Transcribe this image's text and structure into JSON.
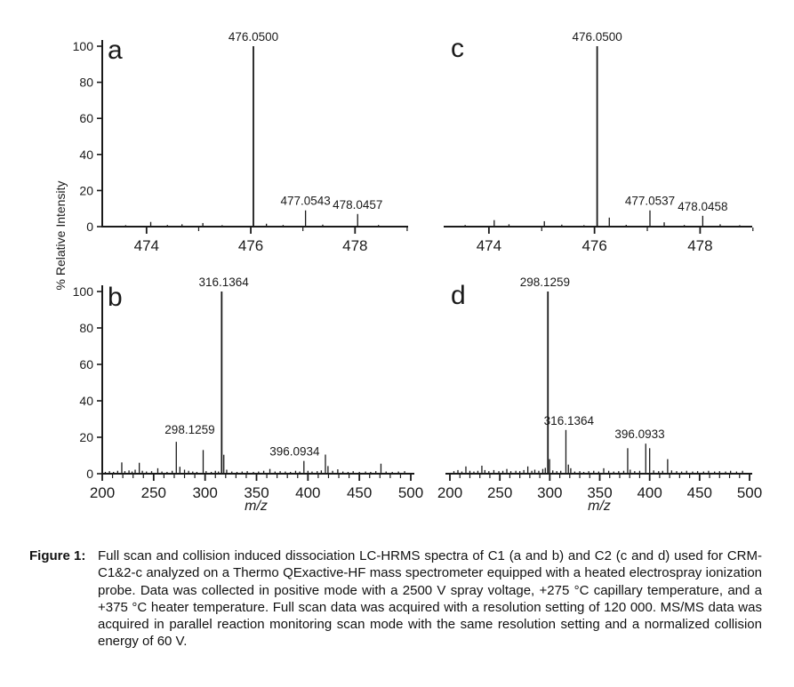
{
  "figure": {
    "ylabel": "% Relative Intensity"
  },
  "caption": {
    "label": "Figure 1:",
    "text": "Full scan and collision induced dissociation LC-HRMS spectra of C1 (a and b) and C2 (c and d) used for CRM-C1&2-c analyzed on a Thermo QExactive-HF mass spectrometer equipped with a heated electrospray ionization probe. Data was collected in positive mode with a 2500 V spray voltage, +275 °C capillary temperature, and a +375 °C heater temperature. Full scan data was acquired with a resolution setting of 120 000. MS/MS data was acquired in parallel reaction monitoring scan mode with the same resolution setting and a normalized collision energy of 60 V."
  },
  "chart_data": [
    {
      "id": "a",
      "type": "bar",
      "style": "mass-spectrum-sticks",
      "letter": "a",
      "xlabel": "",
      "ylabel_shared": "% Relative Intensity",
      "xlim": [
        473.15,
        478.95
      ],
      "ylim": [
        0,
        100
      ],
      "y_axis": true,
      "xticks": {
        "start": 474,
        "end": 479,
        "step": 1,
        "labeled": [
          474,
          476,
          478
        ]
      },
      "yticks": [
        0,
        20,
        40,
        60,
        80,
        100
      ],
      "peaks": [
        {
          "mz": 473.6,
          "i": 0.8
        },
        {
          "mz": 474.08,
          "i": 2.6
        },
        {
          "mz": 474.4,
          "i": 0.9
        },
        {
          "mz": 474.68,
          "i": 1.3
        },
        {
          "mz": 475.08,
          "i": 2.0
        },
        {
          "mz": 475.45,
          "i": 0.8
        },
        {
          "mz": 476.05,
          "i": 100,
          "label": "476.0500"
        },
        {
          "mz": 476.3,
          "i": 1.6
        },
        {
          "mz": 476.62,
          "i": 0.9
        },
        {
          "mz": 477.05,
          "i": 9,
          "label": "477.0543"
        },
        {
          "mz": 477.38,
          "i": 1.1
        },
        {
          "mz": 478.05,
          "i": 7,
          "label": "478.0457"
        },
        {
          "mz": 478.45,
          "i": 0.9
        }
      ]
    },
    {
      "id": "c",
      "type": "bar",
      "style": "mass-spectrum-sticks",
      "letter": "c",
      "xlabel": "",
      "xlim": [
        473.16,
        478.97
      ],
      "ylim": [
        0,
        100
      ],
      "y_axis": false,
      "xticks": {
        "start": 474,
        "end": 479,
        "step": 1,
        "labeled": [
          474,
          476,
          478
        ]
      },
      "yticks": [],
      "peaks": [
        {
          "mz": 473.55,
          "i": 0.9
        },
        {
          "mz": 474.1,
          "i": 3.6
        },
        {
          "mz": 474.38,
          "i": 1.3
        },
        {
          "mz": 475.05,
          "i": 3.0
        },
        {
          "mz": 475.38,
          "i": 1.1
        },
        {
          "mz": 475.8,
          "i": 0.8
        },
        {
          "mz": 476.05,
          "i": 100,
          "label": "476.0500"
        },
        {
          "mz": 476.28,
          "i": 5.0
        },
        {
          "mz": 476.6,
          "i": 1.0
        },
        {
          "mz": 477.05,
          "i": 9,
          "label": "477.0537"
        },
        {
          "mz": 477.32,
          "i": 2.4
        },
        {
          "mz": 477.7,
          "i": 0.9
        },
        {
          "mz": 478.05,
          "i": 6,
          "label": "478.0458"
        },
        {
          "mz": 478.38,
          "i": 1.3
        },
        {
          "mz": 478.75,
          "i": 0.8
        }
      ]
    },
    {
      "id": "b",
      "type": "bar",
      "style": "mass-spectrum-sticks",
      "letter": "b",
      "xlabel": "m/z",
      "xlim": [
        200,
        500
      ],
      "ylim": [
        0,
        100
      ],
      "y_axis": true,
      "xticks": {
        "start": 200,
        "end": 500,
        "step": 10,
        "labeled": [
          200,
          250,
          300,
          350,
          400,
          450,
          500
        ]
      },
      "yticks": [
        0,
        20,
        40,
        60,
        80,
        100
      ],
      "peaks": [
        {
          "mz": 203,
          "i": 1.0
        },
        {
          "mz": 207,
          "i": 1.4
        },
        {
          "mz": 211,
          "i": 1.0
        },
        {
          "mz": 215,
          "i": 1.6
        },
        {
          "mz": 219,
          "i": 6.2
        },
        {
          "mz": 222,
          "i": 1.4
        },
        {
          "mz": 226,
          "i": 1.8
        },
        {
          "mz": 229,
          "i": 1.2
        },
        {
          "mz": 232,
          "i": 2.2
        },
        {
          "mz": 236,
          "i": 6.0
        },
        {
          "mz": 239,
          "i": 1.6
        },
        {
          "mz": 243,
          "i": 1.2
        },
        {
          "mz": 248,
          "i": 1.4
        },
        {
          "mz": 254,
          "i": 3.0
        },
        {
          "mz": 258,
          "i": 1.2
        },
        {
          "mz": 263,
          "i": 1.0
        },
        {
          "mz": 268,
          "i": 1.6
        },
        {
          "mz": 272,
          "i": 17.5
        },
        {
          "mz": 275.5,
          "i": 3.8
        },
        {
          "mz": 280,
          "i": 2.2
        },
        {
          "mz": 284,
          "i": 1.6
        },
        {
          "mz": 288,
          "i": 1.2
        },
        {
          "mz": 292,
          "i": 1.0
        },
        {
          "mz": 298.13,
          "i": 13.0,
          "label": "298.1259",
          "label_dx": -13,
          "label_above": 19
        },
        {
          "mz": 301,
          "i": 1.4
        },
        {
          "mz": 306,
          "i": 1.0
        },
        {
          "mz": 310,
          "i": 1.6
        },
        {
          "mz": 313,
          "i": 1.2
        },
        {
          "mz": 316.14,
          "i": 100,
          "label": "316.1364",
          "label_dx": 2
        },
        {
          "mz": 318.2,
          "i": 10.4
        },
        {
          "mz": 321,
          "i": 2.2
        },
        {
          "mz": 326,
          "i": 1.2
        },
        {
          "mz": 331,
          "i": 1.0
        },
        {
          "mz": 336,
          "i": 1.2
        },
        {
          "mz": 341,
          "i": 1.4
        },
        {
          "mz": 347,
          "i": 1.0
        },
        {
          "mz": 352,
          "i": 1.2
        },
        {
          "mz": 357,
          "i": 1.6
        },
        {
          "mz": 363,
          "i": 2.6
        },
        {
          "mz": 368,
          "i": 1.2
        },
        {
          "mz": 373,
          "i": 1.4
        },
        {
          "mz": 378,
          "i": 1.2
        },
        {
          "mz": 383,
          "i": 1.0
        },
        {
          "mz": 388,
          "i": 1.6
        },
        {
          "mz": 392,
          "i": 1.2
        },
        {
          "mz": 396.09,
          "i": 7,
          "label": "396.0934",
          "label_dx": -9
        },
        {
          "mz": 400,
          "i": 1.6
        },
        {
          "mz": 404,
          "i": 1.2
        },
        {
          "mz": 409,
          "i": 1.4
        },
        {
          "mz": 413,
          "i": 1.8
        },
        {
          "mz": 417,
          "i": 10.5
        },
        {
          "mz": 419.5,
          "i": 4.2
        },
        {
          "mz": 424,
          "i": 1.6
        },
        {
          "mz": 429,
          "i": 2.4
        },
        {
          "mz": 434,
          "i": 1.2
        },
        {
          "mz": 439,
          "i": 1.0
        },
        {
          "mz": 444,
          "i": 1.4
        },
        {
          "mz": 450,
          "i": 1.0
        },
        {
          "mz": 456,
          "i": 1.2
        },
        {
          "mz": 461,
          "i": 1.0
        },
        {
          "mz": 466,
          "i": 1.4
        },
        {
          "mz": 471,
          "i": 5.5
        },
        {
          "mz": 476,
          "i": 1.2
        },
        {
          "mz": 482,
          "i": 1.0
        },
        {
          "mz": 488,
          "i": 1.2
        },
        {
          "mz": 494,
          "i": 1.4
        }
      ]
    },
    {
      "id": "d",
      "type": "bar",
      "style": "mass-spectrum-sticks",
      "letter": "d",
      "xlabel": "m/z",
      "xlim": [
        200,
        500
      ],
      "ylim": [
        0,
        100
      ],
      "y_axis": false,
      "xticks": {
        "start": 200,
        "end": 500,
        "step": 10,
        "labeled": [
          200,
          250,
          300,
          350,
          400,
          450,
          500
        ]
      },
      "yticks": [],
      "peaks": [
        {
          "mz": 204,
          "i": 1.4
        },
        {
          "mz": 208,
          "i": 2.0
        },
        {
          "mz": 212,
          "i": 1.2
        },
        {
          "mz": 216,
          "i": 4.0
        },
        {
          "mz": 220,
          "i": 1.6
        },
        {
          "mz": 224,
          "i": 1.2
        },
        {
          "mz": 228,
          "i": 1.6
        },
        {
          "mz": 232,
          "i": 4.4
        },
        {
          "mz": 235,
          "i": 2.0
        },
        {
          "mz": 239,
          "i": 1.4
        },
        {
          "mz": 244,
          "i": 2.0
        },
        {
          "mz": 249,
          "i": 1.4
        },
        {
          "mz": 253,
          "i": 1.6
        },
        {
          "mz": 257,
          "i": 2.6
        },
        {
          "mz": 261,
          "i": 1.4
        },
        {
          "mz": 266,
          "i": 1.6
        },
        {
          "mz": 270,
          "i": 1.4
        },
        {
          "mz": 274,
          "i": 2.0
        },
        {
          "mz": 278,
          "i": 4.0
        },
        {
          "mz": 282,
          "i": 1.6
        },
        {
          "mz": 285,
          "i": 2.2
        },
        {
          "mz": 289,
          "i": 1.6
        },
        {
          "mz": 293,
          "i": 2.6
        },
        {
          "mz": 295.5,
          "i": 3.2
        },
        {
          "mz": 298.13,
          "i": 100,
          "label": "298.1259",
          "label_dx": -3
        },
        {
          "mz": 299.8,
          "i": 8.0
        },
        {
          "mz": 303,
          "i": 1.8
        },
        {
          "mz": 307,
          "i": 1.4
        },
        {
          "mz": 311,
          "i": 1.6
        },
        {
          "mz": 316.14,
          "i": 24,
          "label": "316.1364",
          "label_dx": 3
        },
        {
          "mz": 318.6,
          "i": 5.0
        },
        {
          "mz": 321,
          "i": 3.0
        },
        {
          "mz": 325,
          "i": 1.2
        },
        {
          "mz": 330,
          "i": 1.4
        },
        {
          "mz": 334,
          "i": 1.0
        },
        {
          "mz": 339,
          "i": 1.4
        },
        {
          "mz": 344,
          "i": 1.6
        },
        {
          "mz": 349,
          "i": 1.2
        },
        {
          "mz": 354,
          "i": 3.0
        },
        {
          "mz": 359,
          "i": 1.6
        },
        {
          "mz": 364,
          "i": 1.2
        },
        {
          "mz": 369,
          "i": 1.4
        },
        {
          "mz": 374,
          "i": 1.6
        },
        {
          "mz": 378,
          "i": 14
        },
        {
          "mz": 380.5,
          "i": 2.2
        },
        {
          "mz": 385,
          "i": 1.4
        },
        {
          "mz": 390,
          "i": 1.6
        },
        {
          "mz": 396.09,
          "i": 16.5,
          "label": "396.0933",
          "label_dx": -6
        },
        {
          "mz": 400,
          "i": 14
        },
        {
          "mz": 404,
          "i": 1.8
        },
        {
          "mz": 409,
          "i": 1.4
        },
        {
          "mz": 413,
          "i": 1.6
        },
        {
          "mz": 418,
          "i": 8.0
        },
        {
          "mz": 422,
          "i": 1.8
        },
        {
          "mz": 427,
          "i": 1.4
        },
        {
          "mz": 432,
          "i": 1.2
        },
        {
          "mz": 437,
          "i": 1.6
        },
        {
          "mz": 443,
          "i": 1.2
        },
        {
          "mz": 448,
          "i": 1.4
        },
        {
          "mz": 454,
          "i": 1.2
        },
        {
          "mz": 459,
          "i": 1.6
        },
        {
          "mz": 465,
          "i": 1.2
        },
        {
          "mz": 470,
          "i": 1.4
        },
        {
          "mz": 476,
          "i": 1.2
        },
        {
          "mz": 481,
          "i": 1.6
        },
        {
          "mz": 487,
          "i": 1.2
        },
        {
          "mz": 493,
          "i": 1.6
        }
      ]
    }
  ]
}
